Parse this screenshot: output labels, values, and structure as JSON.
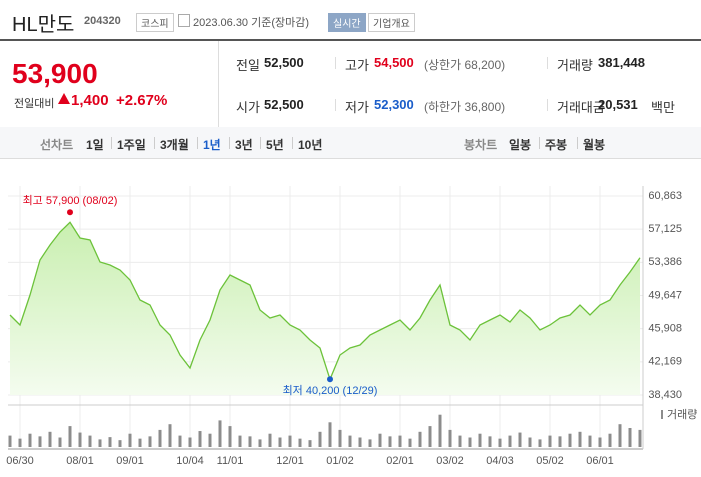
{
  "header": {
    "title": "HL만도",
    "code": "204320",
    "market": "코스피",
    "date": "2023.06.30 기준(장마감)",
    "realtime": "실시간",
    "company": "기업개요"
  },
  "summary": {
    "price": "53,900",
    "change_label": "전일대비",
    "change": "1,400",
    "change_rate": "+2.67%",
    "stats": [
      {
        "label": "전일",
        "value": "52,500"
      },
      {
        "label": "고가",
        "value": "54,500",
        "note": "(상한가 68,200)"
      },
      {
        "label": "거래량",
        "value": "381,448"
      },
      {
        "label": "시가",
        "value": "52,500"
      },
      {
        "label": "저가",
        "value": "52,300",
        "note": "(하한가 36,800)"
      },
      {
        "label": "거래대금",
        "value": "20,531",
        "unit": "백만"
      }
    ]
  },
  "tabs": {
    "line_label": "선차트",
    "line": [
      "1일",
      "1주일",
      "3개월",
      "1년",
      "3년",
      "5년",
      "10년"
    ],
    "line_selected": 3,
    "candle_label": "봉차트",
    "candle": [
      "일봉",
      "주봉",
      "월봉"
    ]
  },
  "chart_data": [
    {
      "type": "line",
      "color": "#6cc23a",
      "categories": [
        null,
        "06/30",
        null,
        null,
        null,
        null,
        null,
        "08/01",
        null,
        null,
        null,
        null,
        "09/01",
        null,
        null,
        null,
        null,
        null,
        "10/04",
        null,
        null,
        null,
        "11/01",
        null,
        null,
        null,
        null,
        null,
        "12/01",
        null,
        null,
        null,
        null,
        "01/02",
        null,
        null,
        null,
        null,
        null,
        "02/01",
        null,
        null,
        null,
        null,
        "03/02",
        null,
        null,
        null,
        null,
        "04/03",
        null,
        null,
        null,
        null,
        "05/02",
        null,
        null,
        null,
        null,
        "06/01",
        null,
        null,
        null,
        null
      ],
      "values": [
        47450,
        46320,
        49700,
        53650,
        55340,
        56800,
        57900,
        56130,
        55900,
        53420,
        53090,
        52520,
        51390,
        49140,
        48580,
        46320,
        45190,
        42940,
        41470,
        44630,
        46880,
        50270,
        51960,
        51390,
        50830,
        48010,
        47110,
        47450,
        46320,
        45760,
        44630,
        43730,
        40200,
        42940,
        43730,
        44070,
        45190,
        45760,
        46320,
        46880,
        45760,
        47110,
        49140,
        50830,
        46320,
        45760,
        44630,
        46320,
        46880,
        47450,
        46660,
        48010,
        47110,
        45760,
        46320,
        47110,
        47450,
        48580,
        47450,
        48580,
        49140,
        50830,
        52300,
        53900
      ],
      "ylim": [
        38430,
        60863
      ],
      "yticks": [
        {
          "value": 38430,
          "label": "38,430"
        },
        {
          "value": 42169,
          "label": "42,169"
        },
        {
          "value": 45908,
          "label": "45,908"
        },
        {
          "value": 49647,
          "label": "49,647"
        },
        {
          "value": 53386,
          "label": "53,386"
        },
        {
          "value": 57125,
          "label": "57,125"
        },
        {
          "value": 60863,
          "label": "60,863"
        }
      ],
      "grid": true,
      "annotations": {
        "high": "최고 57,900 (08/02)",
        "low": "최저 40,200 (12/29)"
      }
    },
    {
      "type": "bar",
      "ylim": [
        0,
        100
      ],
      "series": [
        {
          "name": "거래량",
          "color": "#8c8c8c",
          "values": [
            30,
            22,
            35,
            28,
            40,
            25,
            55,
            38,
            30,
            20,
            26,
            18,
            35,
            22,
            28,
            45,
            60,
            30,
            25,
            42,
            35,
            70,
            55,
            30,
            28,
            20,
            35,
            25,
            30,
            22,
            18,
            40,
            65,
            45,
            30,
            25,
            20,
            35,
            28,
            30,
            22,
            40,
            55,
            85,
            45,
            30,
            25,
            35,
            28,
            22,
            30,
            38,
            25,
            20,
            30,
            28,
            35,
            40,
            30,
            25,
            35,
            60,
            50,
            45
          ]
        }
      ]
    }
  ]
}
